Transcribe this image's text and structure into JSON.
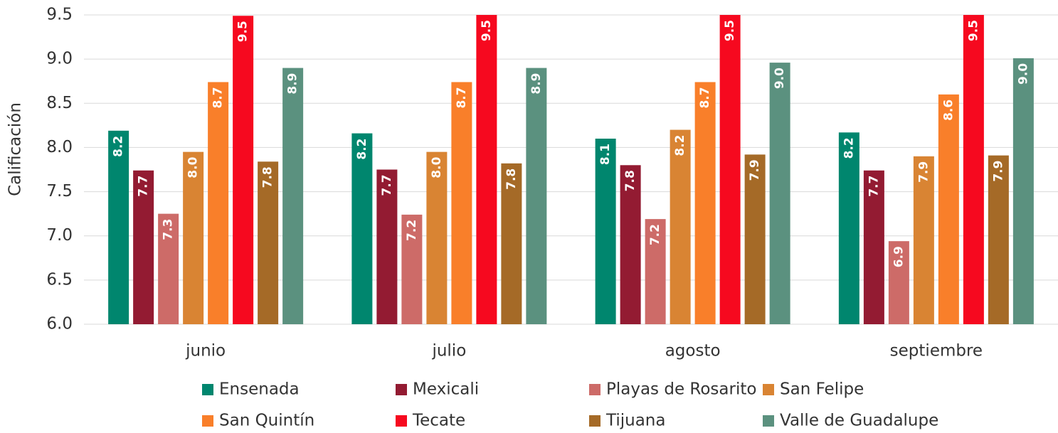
{
  "chart_data": {
    "type": "bar",
    "ylabel": "Calificación",
    "categories": [
      "junio",
      "julio",
      "agosto",
      "septiembre"
    ],
    "ylim": [
      6,
      9.5
    ],
    "yticks": [
      {
        "value": 6,
        "label": "6.0"
      },
      {
        "value": 6.5,
        "label": "6.5"
      },
      {
        "value": 7,
        "label": "7.0"
      },
      {
        "value": 7.5,
        "label": "7.5"
      },
      {
        "value": 8,
        "label": "8.0"
      },
      {
        "value": 8.5,
        "label": "8.5"
      },
      {
        "value": 9,
        "label": "9.0"
      },
      {
        "value": 9.5,
        "label": "9.5"
      }
    ],
    "grid": true,
    "series": [
      {
        "name": "Ensenada",
        "color": "#00866e",
        "values": [
          8.19,
          8.16,
          8.1,
          8.17
        ],
        "value_labels": [
          "8.2",
          "8.2",
          "8.1",
          "8.2"
        ]
      },
      {
        "name": "Mexicali",
        "color": "#931b32",
        "values": [
          7.74,
          7.75,
          7.8,
          7.74
        ],
        "value_labels": [
          "7.7",
          "7.7",
          "7.8",
          "7.7"
        ]
      },
      {
        "name": "Playas de Rosarito",
        "color": "#cd6b68",
        "values": [
          7.25,
          7.24,
          7.19,
          6.94
        ],
        "value_labels": [
          "7.3",
          "7.2",
          "7.2",
          "6.9"
        ]
      },
      {
        "name": "San Felipe",
        "color": "#d98433",
        "values": [
          7.95,
          7.95,
          8.2,
          7.9
        ],
        "value_labels": [
          "8.0",
          "8.0",
          "8.2",
          "7.9"
        ]
      },
      {
        "name": "San Quintín",
        "color": "#f97f2a",
        "values": [
          8.74,
          8.74,
          8.74,
          8.6
        ],
        "value_labels": [
          "8.7",
          "8.7",
          "8.7",
          "8.6"
        ]
      },
      {
        "name": "Tecate",
        "color": "#f6091f",
        "values": [
          9.49,
          9.5,
          9.5,
          9.5
        ],
        "value_labels": [
          "9.5",
          "9.5",
          "9.5",
          "9.5"
        ]
      },
      {
        "name": "Tijuana",
        "color": "#a56a27",
        "values": [
          7.84,
          7.82,
          7.92,
          7.91
        ],
        "value_labels": [
          "7.8",
          "7.8",
          "7.9",
          "7.9"
        ]
      },
      {
        "name": "Valle de Guadalupe",
        "color": "#5b917f",
        "values": [
          8.9,
          8.9,
          8.96,
          9.01
        ],
        "value_labels": [
          "8.9",
          "8.9",
          "9.0",
          "9.0"
        ]
      }
    ]
  }
}
